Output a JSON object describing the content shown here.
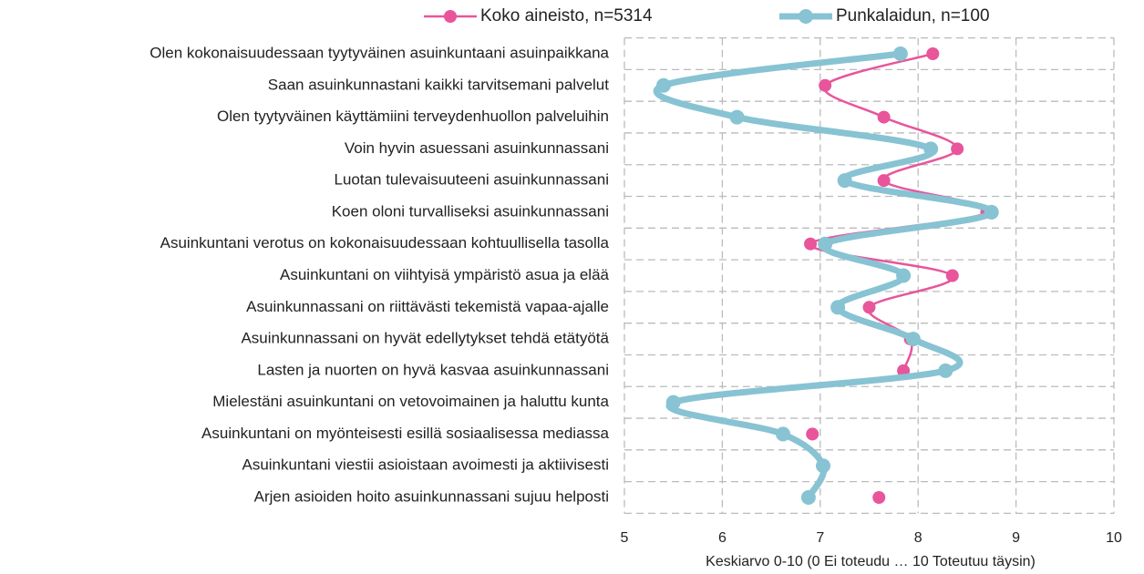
{
  "chart_data": {
    "type": "line",
    "orientation": "horizontal",
    "categories": [
      "Olen kokonaisuudessaan tyytyväinen asuinkuntaani asuinpaikkana",
      "Saan asuinkunnastani kaikki tarvitsemani palvelut",
      "Olen tyytyväinen käyttämiini terveydenhuollon palveluihin",
      "Voin hyvin asuessani asuinkunnassani",
      "Luotan tulevaisuuteeni asuinkunnassani",
      "Koen oloni turvalliseksi asuinkunnassani",
      "Asuinkuntani verotus on kokonaisuudessaan kohtuullisella tasolla",
      "Asuinkuntani on viihtyisä ympäristö asua ja elää",
      "Asuinkunnassani on riittävästi tekemistä vapaa-ajalle",
      "Asuinkunnassani on hyvät edellytykset tehdä etätyötä",
      "Lasten ja nuorten on hyvä kasvaa asuinkunnassani",
      "Mielestäni asuinkuntani on vetovoimainen ja haluttu kunta",
      "Asuinkuntani on myönteisesti esillä sosiaalisessa mediassa",
      "Asuinkuntani viestii asioistaan avoimesti ja aktiivisesti",
      "Arjen asioiden hoito asuinkunnassani sujuu helposti"
    ],
    "series": [
      {
        "name": "Koko aineisto, n=5314",
        "color": "#e8559b",
        "values": [
          8.15,
          7.05,
          7.65,
          8.4,
          7.65,
          8.7,
          6.9,
          8.35,
          7.5,
          7.92,
          7.85,
          null,
          6.92,
          null,
          7.6
        ]
      },
      {
        "name": "Punkalaidun, n=100",
        "color": "#87c3d3",
        "values": [
          7.82,
          5.4,
          6.15,
          8.13,
          7.25,
          8.75,
          7.05,
          7.85,
          7.18,
          7.95,
          8.28,
          5.5,
          6.62,
          7.03,
          6.88
        ]
      }
    ],
    "xlabel": "Keskiarvo 0-10 (0 Ei toteudu … 10 Toteutuu täysin)",
    "xlim": [
      5,
      10
    ],
    "xticks": [
      5,
      6,
      7,
      8,
      9,
      10
    ],
    "grid": true,
    "legend": "top"
  }
}
